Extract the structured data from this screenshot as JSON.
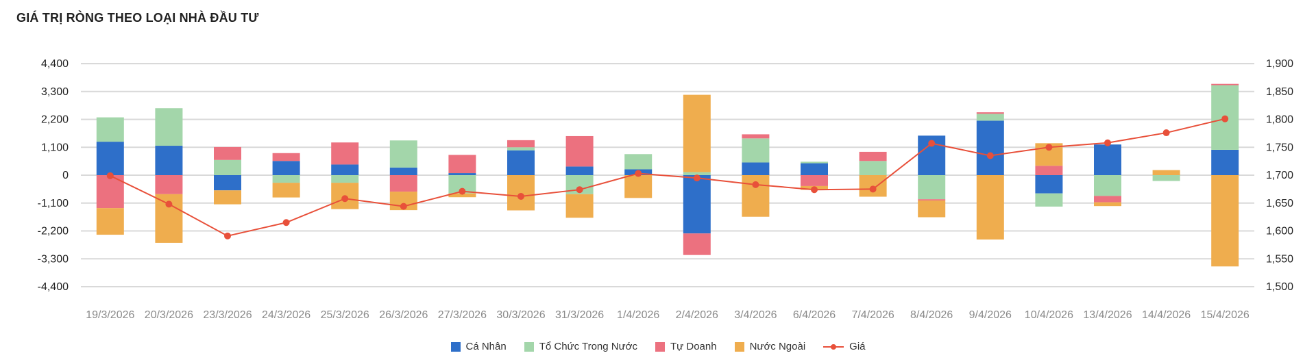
{
  "title": "GIÁ TRỊ RÒNG THEO LOẠI NHÀ ĐẦU TƯ",
  "colors": {
    "ca_nhan": "#2e6fc9",
    "to_chuc": "#a3d6aa",
    "tu_doanh": "#ec717f",
    "nuoc_ngoai": "#efad4e",
    "gia": "#e8503a"
  },
  "chart_data": {
    "type": "bar",
    "stacked": true,
    "title": "GIÁ TRỊ RÒNG THEO LOẠI NHÀ ĐẦU TƯ",
    "categories": [
      "19/3/2026",
      "20/3/2026",
      "23/3/2026",
      "24/3/2026",
      "25/3/2026",
      "26/3/2026",
      "27/3/2026",
      "30/3/2026",
      "31/3/2026",
      "1/4/2026",
      "2/4/2026",
      "3/4/2026",
      "6/4/2026",
      "7/4/2026",
      "8/4/2026",
      "9/4/2026",
      "10/4/2026",
      "13/4/2026",
      "14/4/2026",
      "15/4/2026"
    ],
    "series": [
      {
        "name": "Cá Nhân",
        "color": "#2e6fc9",
        "values": [
          1320,
          1160,
          -600,
          560,
          420,
          300,
          80,
          980,
          340,
          230,
          -2300,
          500,
          470,
          0,
          1560,
          2150,
          -720,
          1210,
          0,
          1000
        ]
      },
      {
        "name": "Tổ Chức Trong Nước",
        "color": "#a3d6aa",
        "values": [
          960,
          1480,
          600,
          -300,
          -300,
          1070,
          -720,
          120,
          -750,
          600,
          120,
          950,
          60,
          560,
          -950,
          270,
          -520,
          -820,
          -230,
          2550
        ]
      },
      {
        "name": "Tự Doanh",
        "color": "#ec717f",
        "values": [
          -1300,
          -750,
          510,
          310,
          870,
          -650,
          720,
          280,
          1200,
          0,
          -850,
          160,
          -430,
          360,
          -50,
          60,
          370,
          -250,
          0,
          50
        ]
      },
      {
        "name": "Nước Ngoài",
        "color": "#efad4e",
        "values": [
          -1050,
          -1920,
          -550,
          -580,
          -1040,
          -730,
          -150,
          -1390,
          -930,
          -900,
          3050,
          -1640,
          -150,
          -850,
          -660,
          -2540,
          890,
          -150,
          200,
          -3600
        ]
      }
    ],
    "line": {
      "name": "Giá",
      "axis": "right",
      "color": "#e8503a",
      "values": [
        1699,
        1648,
        1591,
        1615,
        1658,
        1644,
        1671,
        1662,
        1674,
        1703,
        1695,
        1683,
        1674,
        1675,
        1757,
        1735,
        1750,
        1758,
        1776,
        1801
      ]
    },
    "y_left": {
      "min": -4400,
      "max": 4400,
      "ticks": [
        -4400,
        -3300,
        -2200,
        -1100,
        0,
        1100,
        2200,
        3300,
        4400
      ],
      "tick_labels": [
        "-4,400",
        "-3,300",
        "-2,200",
        "-1,100",
        "0",
        "1,100",
        "2,200",
        "3,300",
        "4,400"
      ]
    },
    "y_right": {
      "min": 1500,
      "max": 1900,
      "ticks": [
        1500,
        1550,
        1600,
        1650,
        1700,
        1750,
        1800,
        1850,
        1900
      ],
      "tick_labels": [
        "1,500",
        "1,550",
        "1,600",
        "1,650",
        "1,700",
        "1,750",
        "1,800",
        "1,850",
        "1,900"
      ]
    },
    "grid": true,
    "legend_position": "bottom"
  },
  "legend": [
    {
      "label": "Cá Nhân",
      "color": "#2e6fc9",
      "kind": "bar"
    },
    {
      "label": "Tổ Chức Trong Nước",
      "color": "#a3d6aa",
      "kind": "bar"
    },
    {
      "label": "Tự Doanh",
      "color": "#ec717f",
      "kind": "bar"
    },
    {
      "label": "Nước Ngoài",
      "color": "#efad4e",
      "kind": "bar"
    },
    {
      "label": "Giá",
      "color": "#e8503a",
      "kind": "line"
    }
  ]
}
